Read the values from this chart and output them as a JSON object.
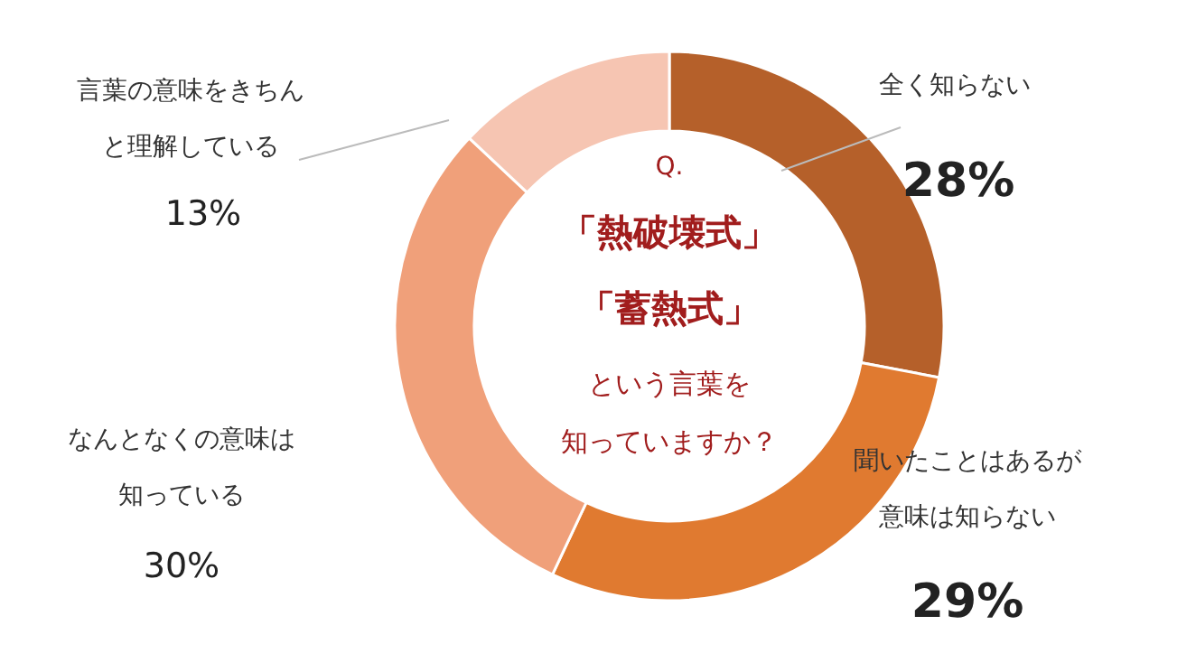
{
  "chart_data": {
    "type": "donut",
    "title": "Q.",
    "annotations": [
      "「熱破壊式」",
      "「蓄熱式」",
      "という言葉を知っていますか？"
    ],
    "categories": [
      "全く知らない",
      "聞いたことはあるが意味は知らない",
      "なんとなくの意味は知っている",
      "言葉の意味をきちんと理解している"
    ],
    "values": [
      28,
      29,
      30,
      13
    ],
    "value_labels": [
      "28%",
      "29%",
      "30%",
      "13%"
    ],
    "colors": [
      "#b5602a",
      "#e07a30",
      "#f0a07a",
      "#f6c5b2"
    ]
  }
}
